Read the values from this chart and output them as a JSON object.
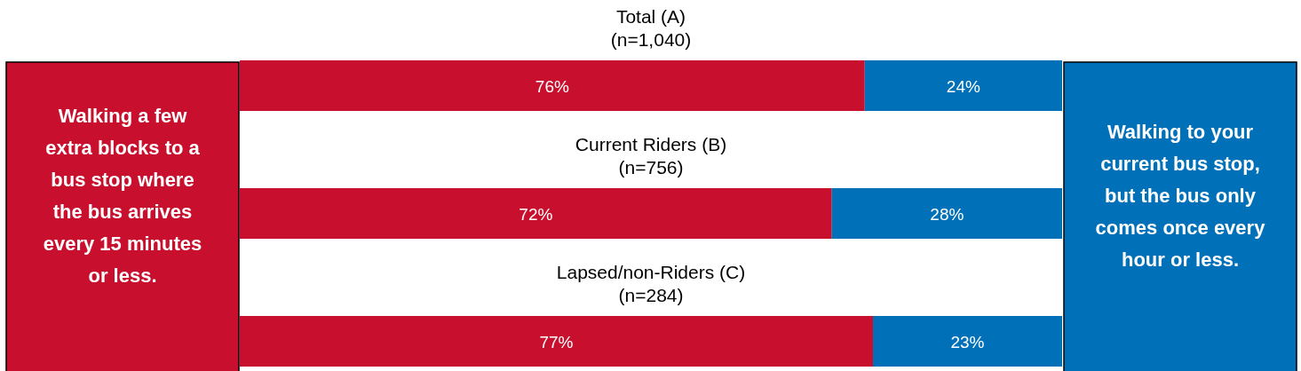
{
  "chart_data": {
    "type": "bar",
    "orientation": "horizontal",
    "stacked": true,
    "categories": [
      "Total (A)\n(n=1,040)",
      "Current Riders (B)\n(n=756)",
      "Lapsed/non-Riders (C)\n(n=284)"
    ],
    "series": [
      {
        "name": "Walking a few extra blocks to a bus stop where the bus arrives every 15 minutes or less.",
        "color": "#c8102e",
        "values": [
          76,
          72,
          77
        ],
        "value_labels": [
          "76%",
          "72%",
          "77%"
        ]
      },
      {
        "name": "Walking to your current bus stop, but the bus only comes once every hour or less.",
        "color": "#0070b8",
        "values": [
          24,
          28,
          23
        ],
        "value_labels": [
          "24%",
          "28%",
          "23%"
        ]
      }
    ]
  }
}
